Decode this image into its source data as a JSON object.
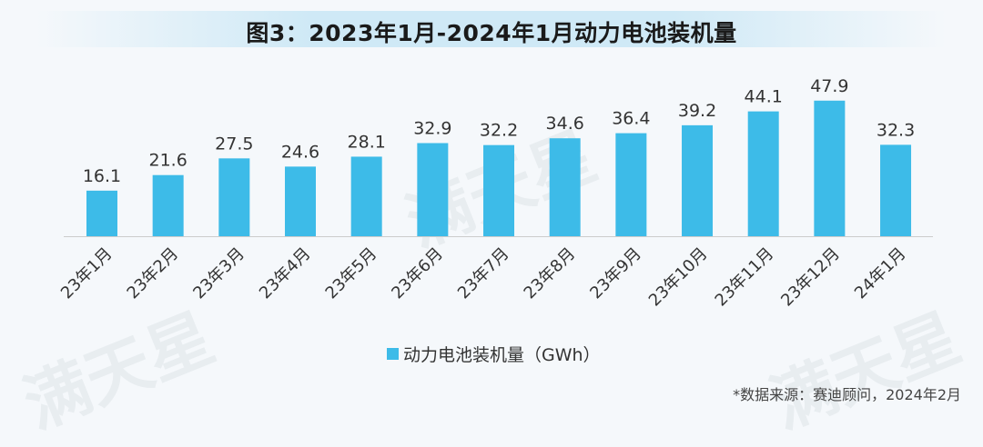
{
  "chart_data": {
    "type": "bar",
    "title": "图3：2023年1月-2024年1月动力电池装机量",
    "categories": [
      "23年1月",
      "23年2月",
      "23年3月",
      "23年4月",
      "23年5月",
      "23年6月",
      "23年7月",
      "23年8月",
      "23年9月",
      "23年10月",
      "23年11月",
      "23年12月",
      "24年1月"
    ],
    "series": [
      {
        "name": "动力电池装机量（GWh）",
        "values": [
          16.1,
          21.6,
          27.5,
          24.6,
          28.1,
          32.9,
          32.2,
          34.6,
          36.4,
          39.2,
          44.1,
          47.9,
          32.3
        ]
      }
    ],
    "xlabel": "",
    "ylabel": "",
    "ylim": [
      0,
      52
    ],
    "grid": false,
    "legend": "bottom",
    "bar_color": "#3dbbe8",
    "axis_color": "#cccccc"
  },
  "source": "*数据来源：赛迪顾问，2024年2月",
  "watermark": "满天星"
}
